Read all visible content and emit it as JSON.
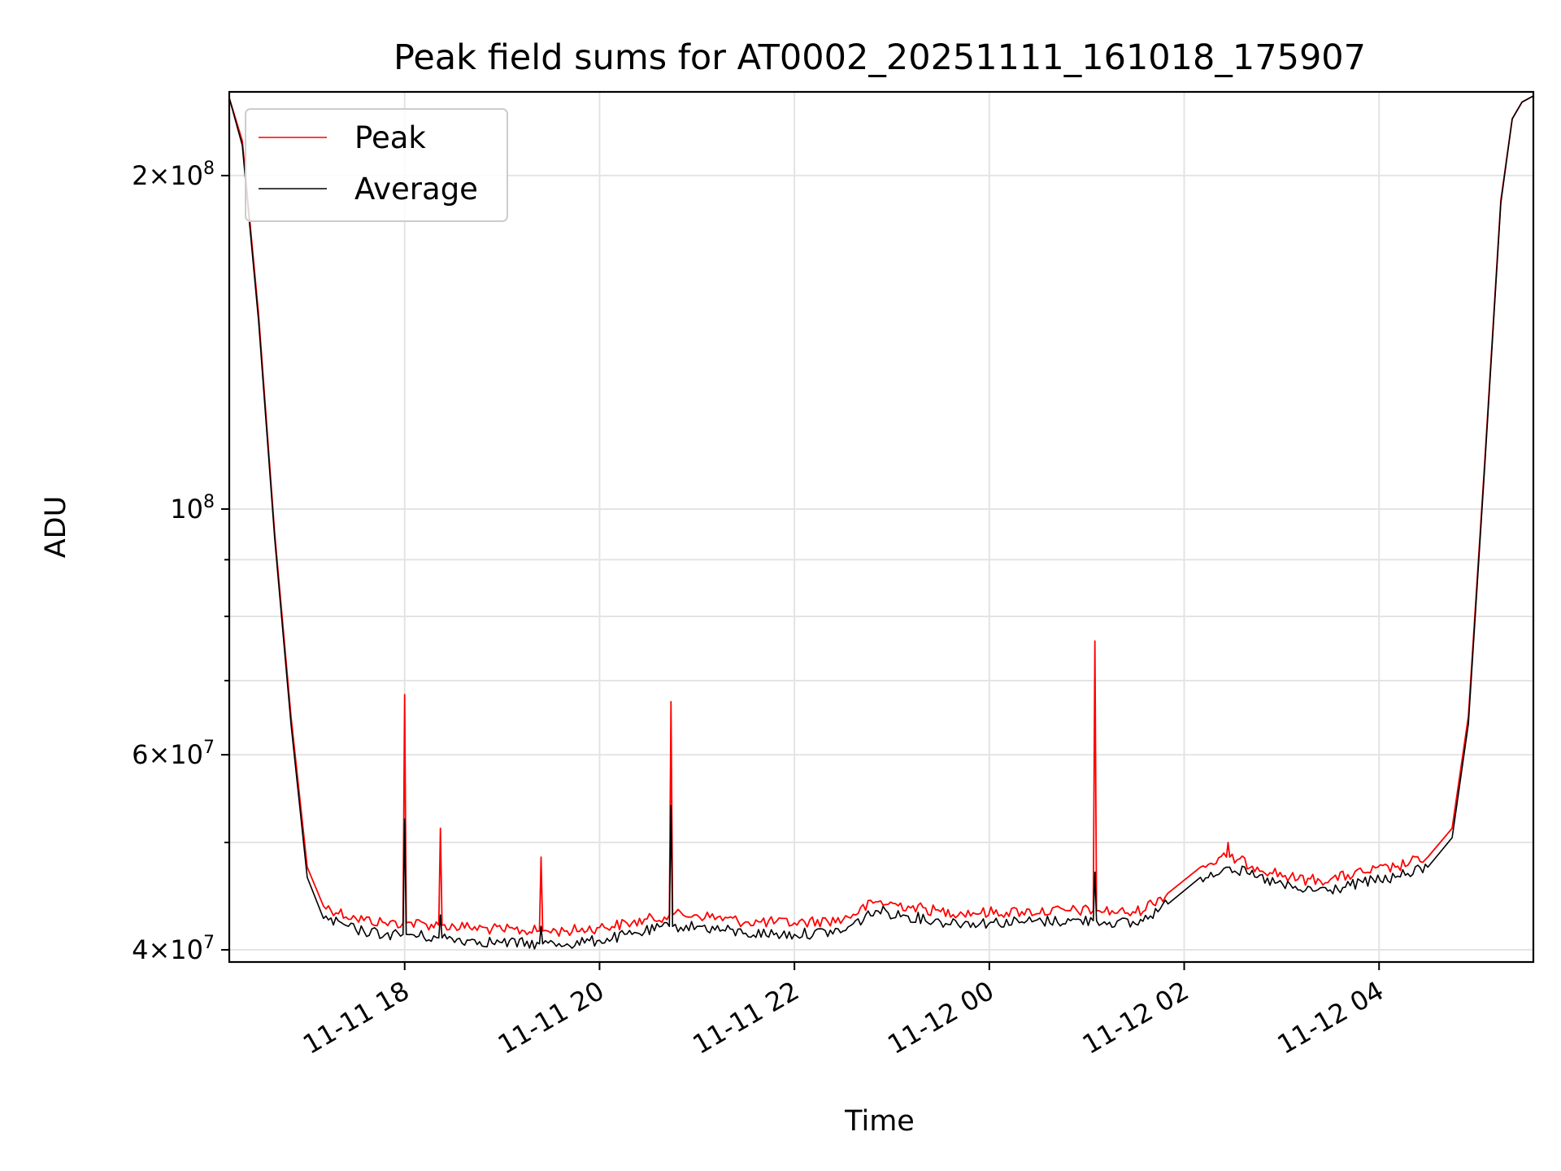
{
  "chart_data": {
    "type": "line",
    "title": "Peak field sums for AT0002_20251111_161018_175907",
    "xlabel": "Time",
    "ylabel": "ADU",
    "yscale": "log",
    "ylim": [
      39000000,
      238000000
    ],
    "xlim": [
      "2025-11-11T16:12",
      "2025-11-12T05:35"
    ],
    "grid": true,
    "legend_position": "upper-left",
    "x_ticks": [
      {
        "value": "2025-11-11T18:00",
        "label": "11-11 18"
      },
      {
        "value": "2025-11-11T20:00",
        "label": "11-11 20"
      },
      {
        "value": "2025-11-11T22:00",
        "label": "11-11 22"
      },
      {
        "value": "2025-11-12T00:00",
        "label": "11-12 00"
      },
      {
        "value": "2025-11-12T02:00",
        "label": "11-12 02"
      },
      {
        "value": "2025-11-12T04:00",
        "label": "11-12 04"
      }
    ],
    "y_ticks": [
      {
        "value": 40000000,
        "mantissa": "4",
        "exponent": "7"
      },
      {
        "value": 60000000,
        "mantissa": "6",
        "exponent": "7"
      },
      {
        "value": 100000000,
        "mantissa": "",
        "exponent": "8"
      },
      {
        "value": 200000000,
        "mantissa": "2",
        "exponent": "8"
      }
    ],
    "y_minor_ticks": [
      50000000,
      70000000,
      80000000,
      90000000
    ],
    "series": [
      {
        "name": "Peak",
        "color": "#ff0000",
        "x": [
          "2025-11-11T16:12",
          "2025-11-11T16:20",
          "2025-11-11T16:30",
          "2025-11-11T16:40",
          "2025-11-11T16:50",
          "2025-11-11T17:00",
          "2025-11-11T17:10",
          "2025-11-11T17:30",
          "2025-11-11T17:48",
          "2025-11-11T17:59",
          "2025-11-11T18:00",
          "2025-11-11T18:01",
          "2025-11-11T18:21",
          "2025-11-11T18:22",
          "2025-11-11T18:23",
          "2025-11-11T18:40",
          "2025-11-11T19:00",
          "2025-11-11T19:23",
          "2025-11-11T19:24",
          "2025-11-11T19:25",
          "2025-11-11T19:40",
          "2025-11-11T20:00",
          "2025-11-11T20:20",
          "2025-11-11T20:43",
          "2025-11-11T20:44",
          "2025-11-11T20:45",
          "2025-11-11T21:00",
          "2025-11-11T21:30",
          "2025-11-11T22:00",
          "2025-11-11T22:30",
          "2025-11-11T22:50",
          "2025-11-11T23:10",
          "2025-11-11T23:30",
          "2025-11-11T23:50",
          "2025-11-12T00:20",
          "2025-11-12T00:50",
          "2025-11-12T01:04",
          "2025-11-12T01:05",
          "2025-11-12T01:06",
          "2025-11-12T01:30",
          "2025-11-12T01:50",
          "2025-11-12T02:10",
          "2025-11-12T02:26",
          "2025-11-12T02:27",
          "2025-11-12T02:28",
          "2025-11-12T02:45",
          "2025-11-12T03:10",
          "2025-11-12T03:30",
          "2025-11-12T03:50",
          "2025-11-12T04:10",
          "2025-11-12T04:30",
          "2025-11-12T04:45",
          "2025-11-12T04:55",
          "2025-11-12T05:05",
          "2025-11-12T05:15",
          "2025-11-12T05:22",
          "2025-11-12T05:28",
          "2025-11-12T05:35"
        ],
        "values": [
          235000000,
          215000000,
          150000000,
          95000000,
          65000000,
          47500000,
          43800000,
          42700000,
          42300000,
          42300000,
          68000000,
          42300000,
          42100000,
          51500000,
          42100000,
          41900000,
          41700000,
          41600000,
          48500000,
          41600000,
          41600000,
          41900000,
          42300000,
          43000000,
          67000000,
          43000000,
          43000000,
          42400000,
          42300000,
          42600000,
          44200000,
          43800000,
          43300000,
          43200000,
          43300000,
          43400000,
          43400000,
          76000000,
          43400000,
          43200000,
          45000000,
          47500000,
          48500000,
          50000000,
          48500000,
          47500000,
          46300000,
          46300000,
          47000000,
          47500000,
          48500000,
          51500000,
          65000000,
          110000000,
          190000000,
          225000000,
          233000000,
          236000000
        ]
      },
      {
        "name": "Average",
        "color": "#000000",
        "x": [
          "2025-11-11T16:12",
          "2025-11-11T16:20",
          "2025-11-11T16:30",
          "2025-11-11T16:40",
          "2025-11-11T16:50",
          "2025-11-11T17:00",
          "2025-11-11T17:10",
          "2025-11-11T17:30",
          "2025-11-11T17:48",
          "2025-11-11T17:59",
          "2025-11-11T18:00",
          "2025-11-11T18:01",
          "2025-11-11T18:21",
          "2025-11-11T18:22",
          "2025-11-11T18:23",
          "2025-11-11T18:40",
          "2025-11-11T19:00",
          "2025-11-11T19:23",
          "2025-11-11T19:24",
          "2025-11-11T19:25",
          "2025-11-11T19:40",
          "2025-11-11T20:00",
          "2025-11-11T20:20",
          "2025-11-11T20:43",
          "2025-11-11T20:44",
          "2025-11-11T20:45",
          "2025-11-11T21:00",
          "2025-11-11T21:30",
          "2025-11-11T22:00",
          "2025-11-11T22:30",
          "2025-11-11T22:50",
          "2025-11-11T23:10",
          "2025-11-11T23:30",
          "2025-11-11T23:50",
          "2025-11-12T00:20",
          "2025-11-12T00:50",
          "2025-11-12T01:04",
          "2025-11-12T01:05",
          "2025-11-12T01:06",
          "2025-11-12T01:30",
          "2025-11-12T01:50",
          "2025-11-12T02:10",
          "2025-11-12T02:26",
          "2025-11-12T02:27",
          "2025-11-12T02:28",
          "2025-11-12T02:45",
          "2025-11-12T03:10",
          "2025-11-12T03:30",
          "2025-11-12T03:50",
          "2025-11-12T04:10",
          "2025-11-12T04:30",
          "2025-11-12T04:45",
          "2025-11-12T04:55",
          "2025-11-12T05:05",
          "2025-11-12T05:15",
          "2025-11-12T05:22",
          "2025-11-12T05:28",
          "2025-11-12T05:35"
        ],
        "values": [
          235000000,
          213000000,
          148000000,
          94000000,
          64000000,
          46500000,
          42700000,
          41700000,
          41300000,
          41300000,
          52500000,
          41300000,
          41000000,
          43000000,
          41000000,
          40800000,
          40600000,
          40500000,
          42000000,
          40500000,
          40500000,
          40800000,
          41300000,
          42000000,
          54000000,
          42000000,
          42000000,
          41400000,
          41300000,
          41600000,
          43400000,
          42900000,
          42400000,
          42300000,
          42400000,
          42500000,
          42500000,
          47000000,
          42500000,
          42200000,
          44000000,
          46500000,
          47500000,
          47500000,
          47500000,
          46500000,
          45300000,
          45300000,
          46000000,
          46500000,
          47500000,
          50500000,
          64000000,
          109000000,
          189000000,
          225000000,
          233000000,
          236000000
        ]
      }
    ]
  }
}
